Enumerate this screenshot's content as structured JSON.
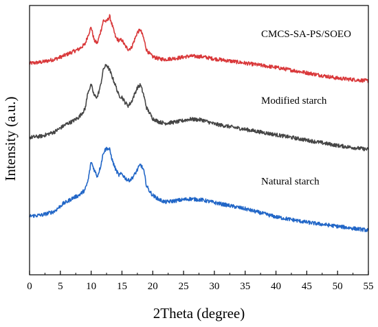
{
  "chart_data": {
    "type": "line",
    "title": "",
    "xlabel": "2Theta (degree)",
    "ylabel": "Intensity (a.u.)",
    "xlim": [
      0,
      55
    ],
    "x_ticks": [
      0,
      5,
      10,
      15,
      20,
      25,
      30,
      35,
      40,
      45,
      50,
      55
    ],
    "x_tick_labels": [
      "0",
      "5",
      "10",
      "15",
      "20",
      "25",
      "30",
      "35",
      "40",
      "45",
      "50",
      "55"
    ],
    "y_ticks_shown": false,
    "ylim": [
      0,
      1
    ],
    "grid": false,
    "legend": "none (series labeled inline)",
    "series": [
      {
        "name": "CMCS-SA-PS/SOEO",
        "color": "#d9383a",
        "x": [
          0,
          2,
          4,
          5,
          6,
          7,
          8,
          9,
          9.5,
          10,
          10.5,
          11,
          11.5,
          12,
          12.5,
          13,
          13.5,
          14,
          14.5,
          15,
          15.5,
          16,
          16.5,
          17,
          17.5,
          18,
          18.5,
          19,
          19.5,
          20,
          21,
          22,
          24,
          26,
          28,
          30,
          35,
          40,
          45,
          50,
          55
        ],
        "y": [
          0.785,
          0.79,
          0.8,
          0.808,
          0.818,
          0.828,
          0.838,
          0.856,
          0.89,
          0.92,
          0.87,
          0.86,
          0.9,
          0.945,
          0.94,
          0.96,
          0.92,
          0.88,
          0.87,
          0.872,
          0.85,
          0.838,
          0.842,
          0.87,
          0.9,
          0.91,
          0.88,
          0.835,
          0.82,
          0.81,
          0.802,
          0.8,
          0.805,
          0.812,
          0.81,
          0.802,
          0.786,
          0.77,
          0.75,
          0.73,
          0.72
        ]
      },
      {
        "name": "Modified starch",
        "color": "#454545",
        "x": [
          0,
          2,
          4,
          5,
          6,
          7,
          8,
          9,
          9.5,
          10,
          10.5,
          11,
          11.5,
          12,
          12.5,
          13,
          13.5,
          14,
          14.5,
          15,
          15.5,
          16,
          16.5,
          17,
          17.5,
          18,
          18.5,
          19,
          19.5,
          20,
          21,
          22,
          24,
          26,
          28,
          30,
          35,
          40,
          45,
          50,
          55
        ],
        "y": [
          0.51,
          0.515,
          0.53,
          0.545,
          0.56,
          0.57,
          0.585,
          0.615,
          0.68,
          0.705,
          0.665,
          0.66,
          0.7,
          0.765,
          0.78,
          0.76,
          0.73,
          0.7,
          0.665,
          0.66,
          0.64,
          0.628,
          0.64,
          0.668,
          0.695,
          0.705,
          0.67,
          0.62,
          0.6,
          0.58,
          0.568,
          0.563,
          0.568,
          0.578,
          0.575,
          0.56,
          0.54,
          0.52,
          0.5,
          0.48,
          0.465
        ]
      },
      {
        "name": "Natural starch",
        "color": "#2166c7",
        "x": [
          0,
          2,
          4,
          5,
          5.5,
          6,
          7,
          8,
          9,
          9.5,
          10,
          10.5,
          11,
          11.5,
          12,
          12.5,
          13,
          13.5,
          14,
          14.5,
          15,
          15.5,
          16,
          16.5,
          17,
          17.5,
          18,
          18.5,
          19,
          19.5,
          20,
          21,
          22,
          24,
          26,
          28,
          30,
          35,
          40,
          45,
          50,
          55
        ],
        "y": [
          0.218,
          0.222,
          0.235,
          0.255,
          0.265,
          0.27,
          0.285,
          0.295,
          0.315,
          0.35,
          0.42,
          0.39,
          0.365,
          0.4,
          0.455,
          0.47,
          0.465,
          0.42,
          0.39,
          0.37,
          0.375,
          0.36,
          0.35,
          0.355,
          0.37,
          0.39,
          0.41,
          0.39,
          0.33,
          0.31,
          0.295,
          0.28,
          0.27,
          0.276,
          0.282,
          0.278,
          0.268,
          0.245,
          0.215,
          0.195,
          0.18,
          0.165
        ]
      }
    ]
  }
}
